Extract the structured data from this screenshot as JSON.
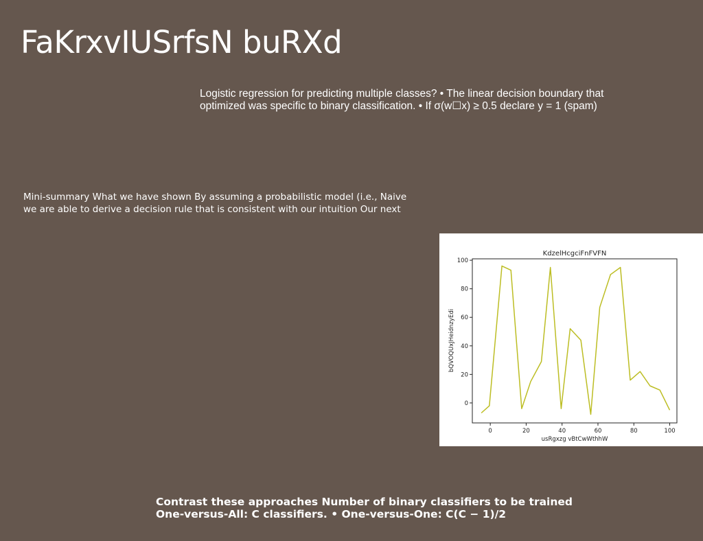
{
  "slide": {
    "title": "FaKrxvIUSrfsN buRXd",
    "paragraph_1": {
      "lines": [
        "Logistic regression for predicting multiple classes? • The linear decision boundary that",
        "optimized was specific to binary classification. • If σ(w☐x) ≥ 0.5 declare y = 1 (spam)"
      ]
    },
    "paragraph_2": {
      "lines": [
        "Mini-summary What we have shown By assuming a probabilistic model (i.e., Naive",
        "we are able to derive a decision rule that is consistent with our intuition Our next"
      ]
    },
    "paragraph_3": {
      "lines": [
        "Contrast these approaches Number of binary classifiers to be trained",
        "One-versus-All: C classifiers. • One-versus-One: C(C − 1)/2"
      ]
    }
  },
  "chart_data": {
    "type": "line",
    "title": "KdzelHcgciFnFVFN",
    "xlabel": "usRgxzg vBtCwWthhW",
    "ylabel": "bQVOQUxJHeidnzyEdi",
    "xlim": [
      -10,
      104
    ],
    "ylim": [
      -14,
      101
    ],
    "xticks": [
      0,
      20,
      40,
      60,
      80,
      100
    ],
    "yticks": [
      0,
      20,
      40,
      60,
      80,
      100
    ],
    "grid": false,
    "line_color": "#bcbd22",
    "series": [
      {
        "x": [
          -5,
          -0.5,
          6.5,
          11.5,
          17.5,
          22.5,
          28.5,
          33.5,
          39.5,
          44.5,
          50.5,
          56,
          61,
          67,
          72.5,
          78,
          83.5,
          89,
          94.5,
          100
        ],
        "y": [
          -7,
          -2,
          96,
          93,
          -4,
          15,
          29,
          95,
          -4,
          52,
          44,
          -8,
          67,
          90,
          95,
          16,
          22,
          12,
          9,
          -5
        ]
      }
    ]
  }
}
